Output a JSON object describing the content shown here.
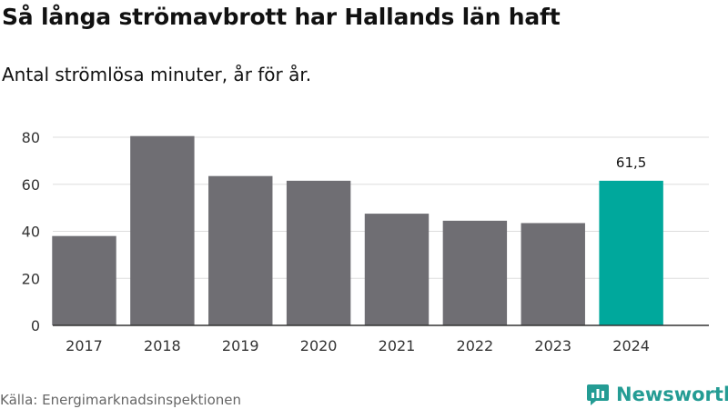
{
  "chart_data": {
    "type": "bar",
    "title": "Så långa strömavbrott har Hallands län haft",
    "subtitle": "Antal strömlösa minuter, år för år.",
    "categories": [
      "2017",
      "2018",
      "2019",
      "2020",
      "2021",
      "2022",
      "2023",
      "2024"
    ],
    "values": [
      38,
      80.5,
      63.5,
      61.5,
      47.5,
      44.5,
      43.5,
      61.5
    ],
    "data_labels": [
      "",
      "",
      "",
      "",
      "",
      "",
      "",
      "61,5"
    ],
    "highlight_index": 7,
    "yticks": [
      "0",
      "20",
      "40",
      "60",
      "80"
    ],
    "ylim": [
      0,
      80
    ],
    "grid": true,
    "colors": {
      "bar": "#6f6e73",
      "highlight": "#00a89c",
      "grid": "#dddddd",
      "axis": "#333333"
    }
  },
  "footer": {
    "source": "Källa: Energimarknadsinspektionen",
    "brand": "Newsworthy",
    "brand_icon": "newsworthy-logo-icon"
  }
}
